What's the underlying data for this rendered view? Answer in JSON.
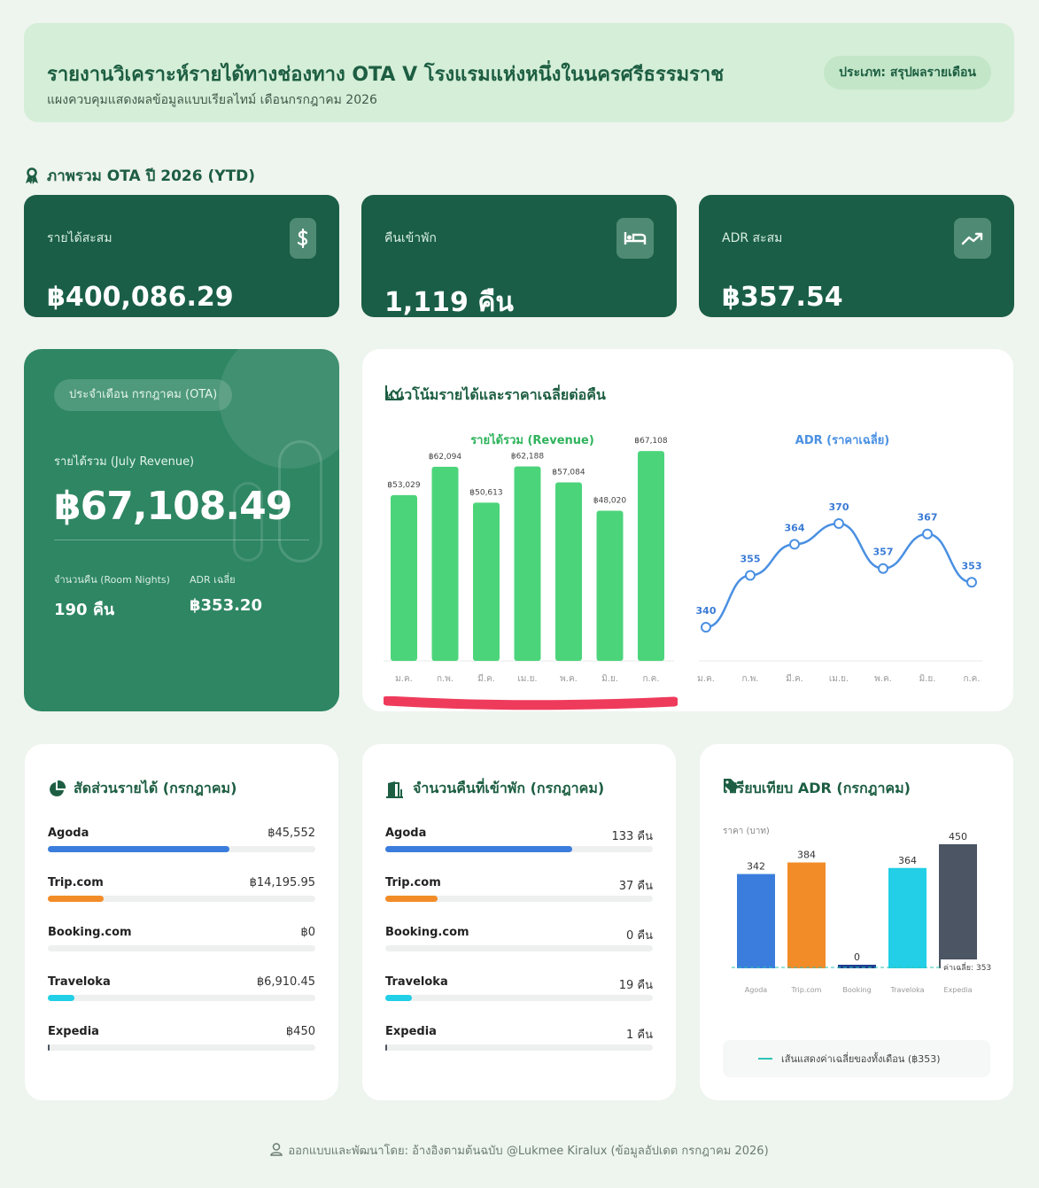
{
  "header": {
    "title": "รายงานวิเคราะห์รายได้ทางช่องทาง OTA V โรงแรมแห่งหนึ่งในนครศรีธรรมราช",
    "subtitle": "แผงควบคุมแสดงผลข้อมูลแบบเรียลไทม์ เดือนกรกฎาคม 2026",
    "badge": "ประเภท: สรุปผลรายเดือน"
  },
  "ytd": {
    "section_title": "ภาพรวม OTA ปี 2026 (YTD)",
    "cards": [
      {
        "label": "รายได้สะสม",
        "value": "฿400,086.29",
        "icon": "dollar-icon"
      },
      {
        "label": "คืนเข้าพัก",
        "value": "1,119 คืน",
        "icon": "bed-icon"
      },
      {
        "label": "ADR สะสม",
        "value": "฿357.54",
        "icon": "trending-up-icon"
      }
    ]
  },
  "july": {
    "tag": "ประจำเดือน กรกฎาคม (OTA)",
    "revenue_label": "รายได้รวม (July Revenue)",
    "revenue_value": "฿67,108.49",
    "nights_label": "จำนวนคืน (Room Nights)",
    "nights_value": "190 คืน",
    "adr_label": "ADR เฉลี่ย",
    "adr_value": "฿353.20"
  },
  "trend": {
    "title": "แนวโน้มรายได้และราคาเฉลี่ยต่อคืน"
  },
  "chart_data": [
    {
      "type": "bar",
      "title": "รายได้รวม (Revenue)",
      "categories": [
        "ม.ค.",
        "ก.พ.",
        "มี.ค.",
        "เม.ย.",
        "พ.ค.",
        "มิ.ย.",
        "ก.ค."
      ],
      "values": [
        53029,
        62094,
        50613,
        62188,
        57084,
        48020,
        67108
      ],
      "labels": [
        "฿53,029",
        "฿62,094",
        "฿50,613",
        "฿62,188",
        "฿57,084",
        "฿48,020",
        "฿67,108"
      ],
      "color": "#4cd47b",
      "ylim": [
        0,
        68000
      ]
    },
    {
      "type": "line",
      "title": "ADR (ราคาเฉลี่ย)",
      "categories": [
        "ม.ค.",
        "ก.พ.",
        "มี.ค.",
        "เม.ย.",
        "พ.ค.",
        "มิ.ย.",
        "ก.ค."
      ],
      "values": [
        340,
        355,
        364,
        370,
        357,
        367,
        353
      ],
      "color": "#4a90e2",
      "ylim": [
        320,
        390
      ]
    },
    {
      "type": "bar",
      "title": "เปรียบเทียบ ADR (กรกฎาคม)",
      "ylabel": "ราคา (บาท)",
      "categories": [
        "Agoda",
        "Trip.com",
        "Booking",
        "Traveloka",
        "Expedia"
      ],
      "values": [
        342,
        384,
        0,
        364,
        450
      ],
      "colors": [
        "#3b7ddd",
        "#f28c28",
        "#1d3f8f",
        "#22cfe6",
        "#4b5563"
      ],
      "average": 353,
      "average_label": "ค่าเฉลี่ย: 353",
      "ylim": [
        0,
        460
      ]
    }
  ],
  "share": {
    "title": "สัดส่วนรายได้ (กรกฎาคม)",
    "items": [
      {
        "name": "Agoda",
        "value": "฿45,552",
        "fraction": 0.68,
        "color": "#3b7ddd"
      },
      {
        "name": "Trip.com",
        "value": "฿14,195.95",
        "fraction": 0.21,
        "color": "#f28c28"
      },
      {
        "name": "Booking.com",
        "value": "฿0",
        "fraction": 0,
        "color": "#1d3f8f"
      },
      {
        "name": "Traveloka",
        "value": "฿6,910.45",
        "fraction": 0.1,
        "color": "#22cfe6"
      },
      {
        "name": "Expedia",
        "value": "฿450",
        "fraction": 0.007,
        "color": "#4b5563"
      }
    ]
  },
  "nights": {
    "title": "จำนวนคืนที่เข้าพัก (กรกฎาคม)",
    "items": [
      {
        "name": "Agoda",
        "value": "133 คืน",
        "fraction": 0.7,
        "color": "#3b7ddd"
      },
      {
        "name": "Trip.com",
        "value": "37 คืน",
        "fraction": 0.195,
        "color": "#f28c28"
      },
      {
        "name": "Booking.com",
        "value": "0 คืน",
        "fraction": 0,
        "color": "#1d3f8f"
      },
      {
        "name": "Traveloka",
        "value": "19 คืน",
        "fraction": 0.1,
        "color": "#22cfe6"
      },
      {
        "name": "Expedia",
        "value": "1 คืน",
        "fraction": 0.005,
        "color": "#4b5563"
      }
    ]
  },
  "adr_compare": {
    "legend": "เส้นแสดงค่าเฉลี่ยของทั้งเดือน (฿353)"
  },
  "footer": {
    "text": "ออกแบบและพัฒนาโดย: อ้างอิงตามต้นฉบับ @Lukmee Kiralux (ข้อมูลอัปเดต กรกฎาคม 2026)"
  }
}
